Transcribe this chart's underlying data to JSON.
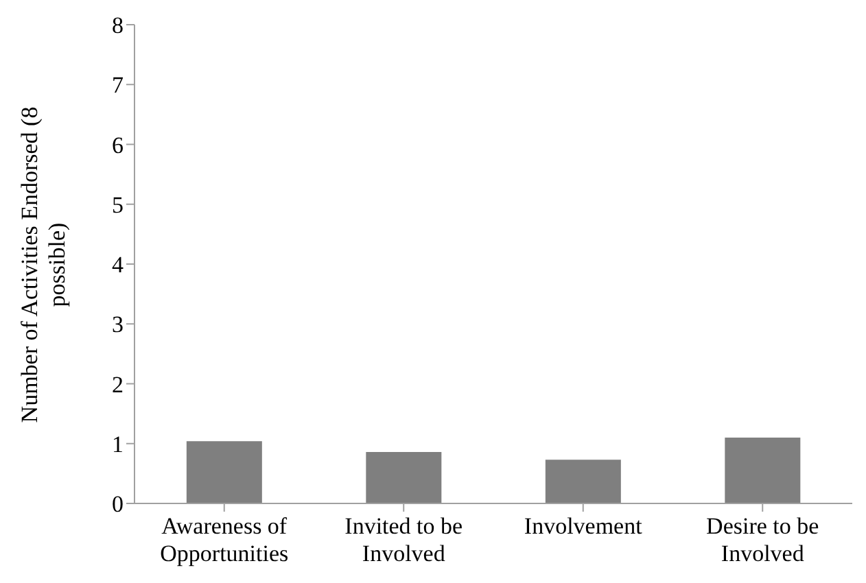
{
  "chart_data": {
    "type": "bar",
    "ylabel": "Number of Activities Endorsed (8 possible)",
    "categories": [
      "Awareness of Opportunities",
      "Invited to be Involved",
      "Involvement",
      "Desire to be Involved"
    ],
    "values": [
      1.04,
      0.86,
      0.73,
      1.1
    ],
    "color": "#7f7f7f",
    "ylim": [
      0,
      8
    ],
    "yticks": [
      0,
      1,
      2,
      3,
      4,
      5,
      6,
      7,
      8
    ],
    "grid": false
  }
}
